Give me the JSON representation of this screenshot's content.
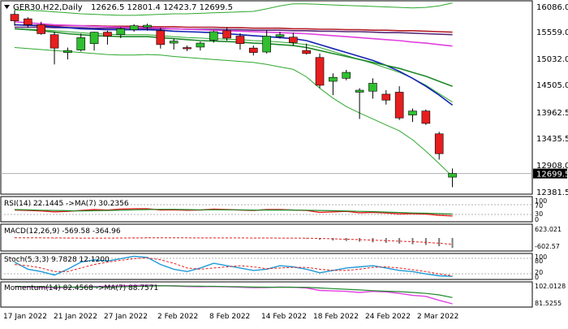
{
  "header": {
    "symbol_line": "GER30.H22,Daily",
    "ohlc_line": "12626.5 12801.4 12423.7 12699.5"
  },
  "colors": {
    "bull": "#2fbf2f",
    "bear": "#e61e1e",
    "ma_blue": "#1422b4",
    "ma_darkred": "#b41e28",
    "ma_magenta": "#e040e0",
    "ma_purple": "#5a2a7a",
    "ma_green": "#1e8a2a",
    "band": "#2ea82e",
    "price_tag_bg": "#000000"
  },
  "price_panel": {
    "ticks": [
      "16086.0",
      "15559.0",
      "15032.0",
      "14505.0",
      "13962.5",
      "13435.5",
      "12908.0",
      "12381.5"
    ],
    "current_price_label": "12699.5"
  },
  "rsi_panel": {
    "label": "RSI(14) 22.1445 ->MA(7) 30.2356",
    "ticks": [
      "100",
      "70",
      "30",
      "0"
    ]
  },
  "macd_panel": {
    "label": "MACD(12,26,9) -569.58 -364.96",
    "ticks": [
      "623.021",
      "-602.57"
    ]
  },
  "stoch_panel": {
    "label": "Stoch(5,3,3) 9.7828 12.1200",
    "ticks": [
      "100",
      "80",
      "20",
      "0"
    ]
  },
  "momentum_panel": {
    "label": "Momentum(14) 82.4568 ->MA(7) 88.7571",
    "ticks": [
      "102.0128",
      "81.5255"
    ]
  },
  "x_axis": {
    "labels": [
      "17 Jan 2022",
      "21 Jan 2022",
      "27 Jan 2022",
      "2 Feb 2022",
      "8 Feb 2022",
      "14 Feb 2022",
      "18 Feb 2022",
      "24 Feb 2022",
      "2 Mar 2022"
    ]
  },
  "chart_data": {
    "type": "candlestick",
    "symbol": "GER30.H22",
    "timeframe": "Daily",
    "y_range": [
      12300,
      16150
    ],
    "candles": [
      {
        "o": 15910,
        "h": 15990,
        "l": 15680,
        "c": 15780
      },
      {
        "o": 15820,
        "h": 15850,
        "l": 15640,
        "c": 15700
      },
      {
        "o": 15700,
        "h": 15760,
        "l": 15500,
        "c": 15520
      },
      {
        "o": 15500,
        "h": 15560,
        "l": 14900,
        "c": 15230
      },
      {
        "o": 15140,
        "h": 15240,
        "l": 15000,
        "c": 15180
      },
      {
        "o": 15190,
        "h": 15520,
        "l": 15160,
        "c": 15440
      },
      {
        "o": 15320,
        "h": 15560,
        "l": 15180,
        "c": 15550
      },
      {
        "o": 15550,
        "h": 15580,
        "l": 15300,
        "c": 15470
      },
      {
        "o": 15500,
        "h": 15650,
        "l": 15430,
        "c": 15620
      },
      {
        "o": 15600,
        "h": 15710,
        "l": 15560,
        "c": 15680
      },
      {
        "o": 15650,
        "h": 15720,
        "l": 15580,
        "c": 15690
      },
      {
        "o": 15580,
        "h": 15640,
        "l": 15220,
        "c": 15300
      },
      {
        "o": 15330,
        "h": 15420,
        "l": 15200,
        "c": 15370
      },
      {
        "o": 15240,
        "h": 15280,
        "l": 15170,
        "c": 15220
      },
      {
        "o": 15250,
        "h": 15360,
        "l": 15180,
        "c": 15330
      },
      {
        "o": 15390,
        "h": 15580,
        "l": 15340,
        "c": 15560
      },
      {
        "o": 15580,
        "h": 15650,
        "l": 15380,
        "c": 15430
      },
      {
        "o": 15470,
        "h": 15530,
        "l": 15200,
        "c": 15320
      },
      {
        "o": 15230,
        "h": 15280,
        "l": 15080,
        "c": 15140
      },
      {
        "o": 15150,
        "h": 15590,
        "l": 15120,
        "c": 15470
      },
      {
        "o": 15460,
        "h": 15560,
        "l": 15420,
        "c": 15500
      },
      {
        "o": 15450,
        "h": 15540,
        "l": 15280,
        "c": 15340
      },
      {
        "o": 15180,
        "h": 15320,
        "l": 15100,
        "c": 15120
      },
      {
        "o": 15040,
        "h": 15120,
        "l": 14420,
        "c": 14480
      },
      {
        "o": 14560,
        "h": 14720,
        "l": 14280,
        "c": 14640
      },
      {
        "o": 14620,
        "h": 14790,
        "l": 14580,
        "c": 14740
      },
      {
        "o": 14340,
        "h": 14420,
        "l": 13800,
        "c": 14380
      },
      {
        "o": 14360,
        "h": 14620,
        "l": 14210,
        "c": 14520
      },
      {
        "o": 14300,
        "h": 14380,
        "l": 14090,
        "c": 14180
      },
      {
        "o": 14340,
        "h": 14460,
        "l": 13780,
        "c": 13820
      },
      {
        "o": 13880,
        "h": 14010,
        "l": 13740,
        "c": 13960
      },
      {
        "o": 13960,
        "h": 13990,
        "l": 13680,
        "c": 13710
      },
      {
        "o": 13500,
        "h": 13540,
        "l": 12980,
        "c": 13100
      },
      {
        "o": 12626.5,
        "h": 12801.4,
        "l": 12423.7,
        "c": 12699.5
      }
    ],
    "moving_averages": [
      {
        "color_key": "ma_darkred",
        "values": [
          15700,
          15690,
          15690,
          15680,
          15680,
          15680,
          15680,
          15670,
          15670,
          15670,
          15660,
          15660,
          15660,
          15650,
          15650,
          15650,
          15640,
          15640,
          15630,
          15630,
          15630,
          15620,
          15620,
          15610,
          15610,
          15600,
          15600,
          15590,
          15590,
          15580,
          15580,
          15570,
          15560,
          15550
        ]
      },
      {
        "color_key": "ma_purple",
        "values": [
          15650,
          15650,
          15650,
          15640,
          15640,
          15640,
          15630,
          15630,
          15630,
          15630,
          15620,
          15620,
          15620,
          15610,
          15610,
          15610,
          15600,
          15600,
          15590,
          15590,
          15590,
          15580,
          15580,
          15570,
          15570,
          15560,
          15560,
          15550,
          15540,
          15540,
          15530,
          15520,
          15510,
          15500
        ]
      },
      {
        "color_key": "ma_magenta",
        "values": [
          15760,
          15740,
          15720,
          15700,
          15690,
          15680,
          15670,
          15660,
          15650,
          15640,
          15640,
          15630,
          15620,
          15610,
          15600,
          15590,
          15580,
          15570,
          15560,
          15550,
          15540,
          15530,
          15520,
          15500,
          15480,
          15460,
          15440,
          15420,
          15400,
          15380,
          15350,
          15330,
          15300,
          15270
        ]
      },
      {
        "color_key": "ma_blue",
        "values": [
          15700,
          15690,
          15680,
          15660,
          15640,
          15620,
          15610,
          15600,
          15600,
          15600,
          15600,
          15590,
          15570,
          15560,
          15550,
          15540,
          15520,
          15500,
          15480,
          15460,
          15440,
          15420,
          15380,
          15300,
          15220,
          15140,
          15060,
          14980,
          14880,
          14760,
          14620,
          14460,
          14280,
          14080
        ]
      },
      {
        "color_key": "ma_green",
        "values": [
          15620,
          15600,
          15580,
          15550,
          15520,
          15500,
          15480,
          15470,
          15460,
          15460,
          15460,
          15440,
          15420,
          15400,
          15380,
          15370,
          15360,
          15350,
          15330,
          15320,
          15300,
          15280,
          15240,
          15180,
          15120,
          15060,
          15000,
          14940,
          14880,
          14820,
          14740,
          14660,
          14560,
          14460
        ]
      }
    ],
    "bollinger": {
      "upper": [
        16000,
        15990,
        15980,
        15960,
        15940,
        15920,
        15910,
        15900,
        15890,
        15890,
        15900,
        15910,
        15920,
        15920,
        15930,
        15940,
        15950,
        15960,
        15970,
        16020,
        16080,
        16120,
        16120,
        16110,
        16100,
        16090,
        16080,
        16070,
        16060,
        16050,
        16040,
        16050,
        16080,
        16140
      ],
      "middle": [
        15620,
        15610,
        15600,
        15580,
        15560,
        15540,
        15520,
        15510,
        15500,
        15500,
        15500,
        15480,
        15460,
        15440,
        15430,
        15420,
        15410,
        15400,
        15380,
        15370,
        15350,
        15330,
        15300,
        15240,
        15160,
        15080,
        15000,
        14920,
        14830,
        14740,
        14620,
        14480,
        14310,
        14140
      ],
      "lower": [
        15240,
        15220,
        15200,
        15180,
        15160,
        15140,
        15120,
        15100,
        15090,
        15090,
        15100,
        15090,
        15060,
        15040,
        15020,
        15000,
        14980,
        14960,
        14940,
        14900,
        14850,
        14800,
        14650,
        14420,
        14220,
        14050,
        13920,
        13800,
        13680,
        13560,
        13380,
        13150,
        12900,
        12640
      ]
    },
    "indicators": {
      "rsi": {
        "period": 14,
        "value": 22.1445,
        "ma_period": 7,
        "ma_value": 30.2356,
        "range": [
          0,
          100
        ],
        "values": [
          48,
          46,
          44,
          40,
          42,
          46,
          50,
          48,
          52,
          54,
          54,
          48,
          49,
          47,
          48,
          52,
          50,
          48,
          46,
          50,
          50,
          48,
          46,
          38,
          40,
          42,
          36,
          38,
          35,
          31,
          32,
          30,
          25,
          22.14
        ],
        "ma_values": [
          50,
          49,
          47,
          46,
          45,
          44,
          45,
          46,
          47,
          49,
          50,
          51,
          51,
          50,
          49,
          49,
          49,
          49,
          48,
          48,
          48,
          48,
          47,
          46,
          45,
          44,
          42,
          41,
          39,
          37,
          35,
          34,
          32,
          30.24
        ]
      },
      "macd": {
        "params": [
          12,
          26,
          9
        ],
        "main": -569.58,
        "signal": -364.96,
        "range": [
          -700,
          700
        ],
        "histogram": [
          15,
          10,
          5,
          -20,
          -25,
          -15,
          0,
          5,
          20,
          30,
          30,
          10,
          5,
          0,
          0,
          10,
          5,
          -5,
          -15,
          -5,
          0,
          -10,
          -40,
          -100,
          -140,
          -170,
          -210,
          -250,
          -280,
          -320,
          -360,
          -400,
          -470,
          -570
        ],
        "signal_values": [
          10,
          10,
          8,
          5,
          0,
          -5,
          -5,
          -5,
          0,
          5,
          10,
          10,
          10,
          8,
          5,
          5,
          5,
          3,
          0,
          -2,
          -3,
          -5,
          -10,
          -25,
          -45,
          -70,
          -95,
          -120,
          -150,
          -180,
          -210,
          -250,
          -300,
          -365
        ]
      },
      "stochastic": {
        "params": [
          5,
          3,
          3
        ],
        "k": 9.7828,
        "d": 12.12,
        "range": [
          0,
          100
        ],
        "k_values": [
          70,
          40,
          30,
          15,
          40,
          70,
          80,
          75,
          85,
          95,
          90,
          60,
          40,
          30,
          45,
          65,
          55,
          45,
          35,
          40,
          55,
          50,
          40,
          25,
          35,
          45,
          50,
          55,
          45,
          35,
          30,
          20,
          12,
          9.78
        ],
        "d_values": [
          60,
          55,
          45,
          30,
          30,
          45,
          60,
          70,
          78,
          85,
          88,
          80,
          65,
          45,
          40,
          45,
          50,
          55,
          50,
          42,
          45,
          48,
          48,
          40,
          35,
          35,
          40,
          48,
          50,
          45,
          38,
          30,
          20,
          12.12
        ]
      },
      "momentum": {
        "period": 14,
        "value": 82.4568,
        "ma_period": 7,
        "ma_value": 88.7571,
        "range": [
          80,
          103
        ],
        "values": [
          100,
          99.5,
          99,
          98.8,
          99,
          99.5,
          100,
          100.2,
          100.5,
          101,
          101.2,
          100.8,
          100.5,
          100,
          99.8,
          100,
          99.6,
          99.2,
          98.8,
          99,
          99.5,
          99.2,
          98.5,
          96,
          95.5,
          95,
          94,
          95,
          94.5,
          93,
          91,
          90,
          86,
          82.46
        ],
        "ma_values": [
          100,
          100,
          99.8,
          99.5,
          99.4,
          99.3,
          99.4,
          99.5,
          99.7,
          100,
          100.3,
          100.6,
          100.6,
          100.4,
          100.2,
          100.1,
          99.9,
          99.7,
          99.4,
          99.3,
          99.2,
          99.2,
          99.1,
          98.5,
          97.8,
          97.2,
          96.5,
          95.8,
          95.2,
          94.8,
          94,
          93,
          91.5,
          88.76
        ]
      }
    }
  }
}
